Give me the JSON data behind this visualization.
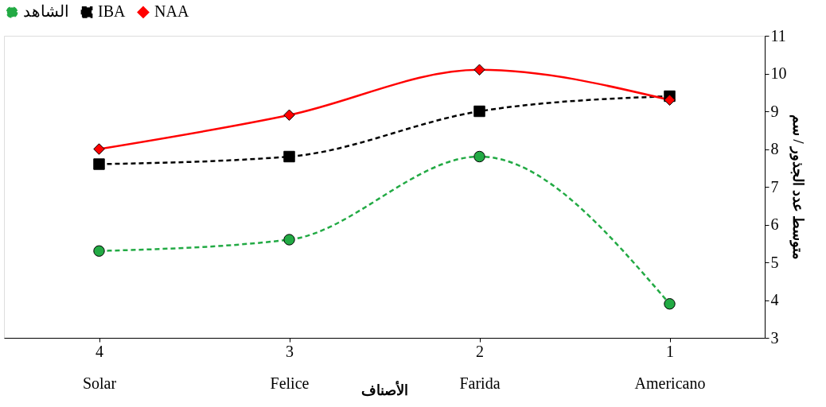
{
  "chart_data": {
    "type": "line",
    "xlabel": "الأصناف",
    "ylabel": "متوسط عدد الجذور / سم",
    "categories": [
      "4\nSolar",
      "3\nFelice",
      "2\nFarida",
      "1\nAmericano"
    ],
    "series": [
      {
        "name": "الشاهد",
        "color": "#22aa44",
        "values": [
          5.3,
          5.6,
          7.8,
          3.9
        ],
        "marker": "circle",
        "line_style": "dashed"
      },
      {
        "name": "IBA",
        "color": "#000000",
        "values": [
          7.6,
          7.8,
          9.0,
          9.4
        ],
        "marker": "square",
        "line_style": "dashed"
      },
      {
        "name": "NAA",
        "color": "#ff0000",
        "values": [
          8.0,
          8.9,
          10.1,
          9.3
        ],
        "marker": "diamond",
        "line_style": "solid"
      }
    ],
    "ylim": [
      3,
      11
    ],
    "yticks": [
      3,
      4,
      5,
      6,
      7,
      8,
      9,
      10,
      11
    ],
    "grid": false,
    "legend": "top"
  }
}
